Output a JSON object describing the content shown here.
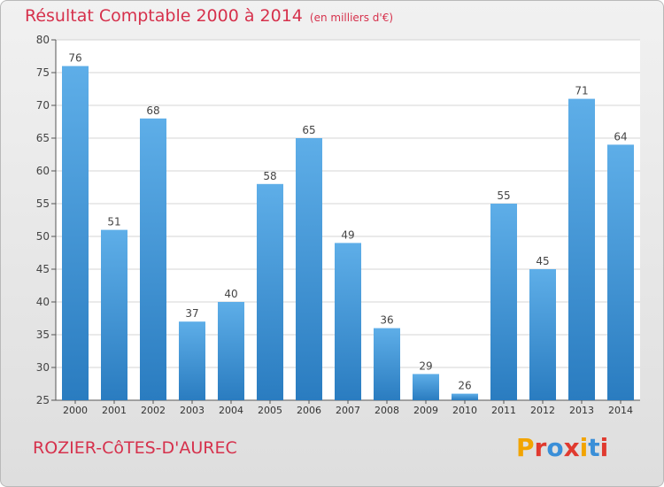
{
  "header": {
    "title": "Résultat Comptable 2000 à 2014",
    "unit": "(en milliers d'€)"
  },
  "footer": {
    "commune": "ROZIER-CôTES-D'AUREC",
    "brand": "Proxiti"
  },
  "colors": {
    "title": "#d6314c",
    "bar_top": "#5eaee8",
    "bar_bottom": "#2a7cc0",
    "brand": [
      "#f2a400",
      "#e03a2f",
      "#3a8fd8",
      "#e03a2f",
      "#f2a400",
      "#3a8fd8",
      "#e03a2f"
    ]
  },
  "chart_data": {
    "type": "bar",
    "title": "Résultat Comptable 2000 à 2014",
    "subtitle": "(en milliers d'€)",
    "xlabel": "",
    "ylabel": "",
    "categories": [
      "2000",
      "2001",
      "2002",
      "2003",
      "2004",
      "2005",
      "2006",
      "2007",
      "2008",
      "2009",
      "2010",
      "2011",
      "2012",
      "2013",
      "2014"
    ],
    "values": [
      76,
      51,
      68,
      37,
      40,
      58,
      65,
      49,
      36,
      29,
      26,
      55,
      45,
      71,
      64
    ],
    "ylim": [
      25,
      80
    ],
    "yticks": [
      25,
      30,
      35,
      40,
      45,
      50,
      55,
      60,
      65,
      70,
      75,
      80
    ],
    "grid": true
  }
}
